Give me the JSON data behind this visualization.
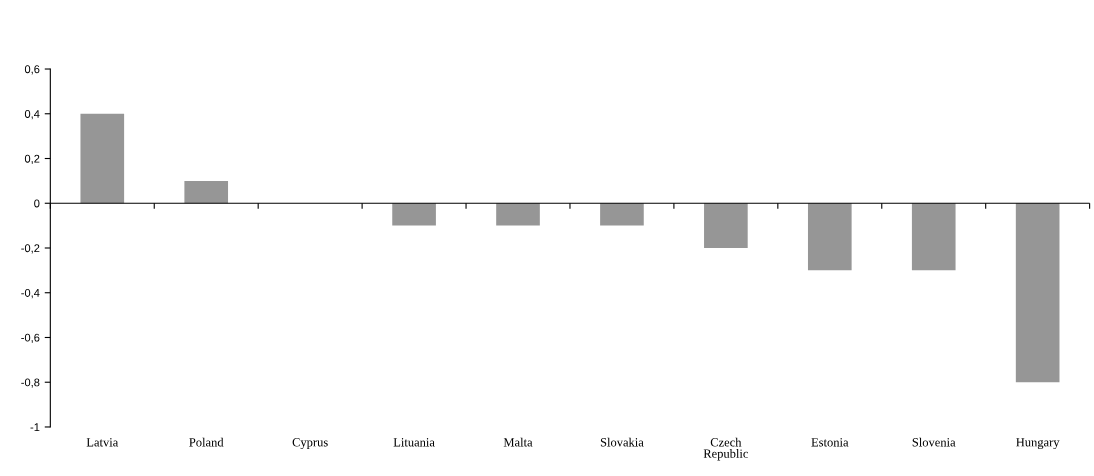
{
  "chart_data": {
    "type": "bar",
    "categories": [
      "Latvia",
      "Poland",
      "Cyprus",
      "Lituania",
      "Malta",
      "Slovakia",
      "Czech\nRepublic",
      "Estonia",
      "Slovenia",
      "Hungary"
    ],
    "values": [
      0.4,
      0.1,
      0,
      -0.1,
      -0.1,
      -0.1,
      -0.2,
      -0.3,
      -0.3,
      -0.8
    ],
    "color": "#969696",
    "ylim": [
      -1,
      0.6
    ],
    "yticks": [
      {
        "value": -1,
        "label": "-1"
      },
      {
        "value": -0.8,
        "label": "-0,8"
      },
      {
        "value": -0.6,
        "label": "-0,6"
      },
      {
        "value": -0.4,
        "label": "-0,4"
      },
      {
        "value": -0.2,
        "label": "-0,2"
      },
      {
        "value": 0,
        "label": "0"
      },
      {
        "value": 0.2,
        "label": "0,2"
      },
      {
        "value": 0.4,
        "label": "0,4"
      },
      {
        "value": 0.6,
        "label": "0,6"
      }
    ],
    "ref_lines": [
      {
        "axis": "y",
        "value": 0,
        "color": "#000000"
      }
    ],
    "grid": false,
    "legend": false
  }
}
